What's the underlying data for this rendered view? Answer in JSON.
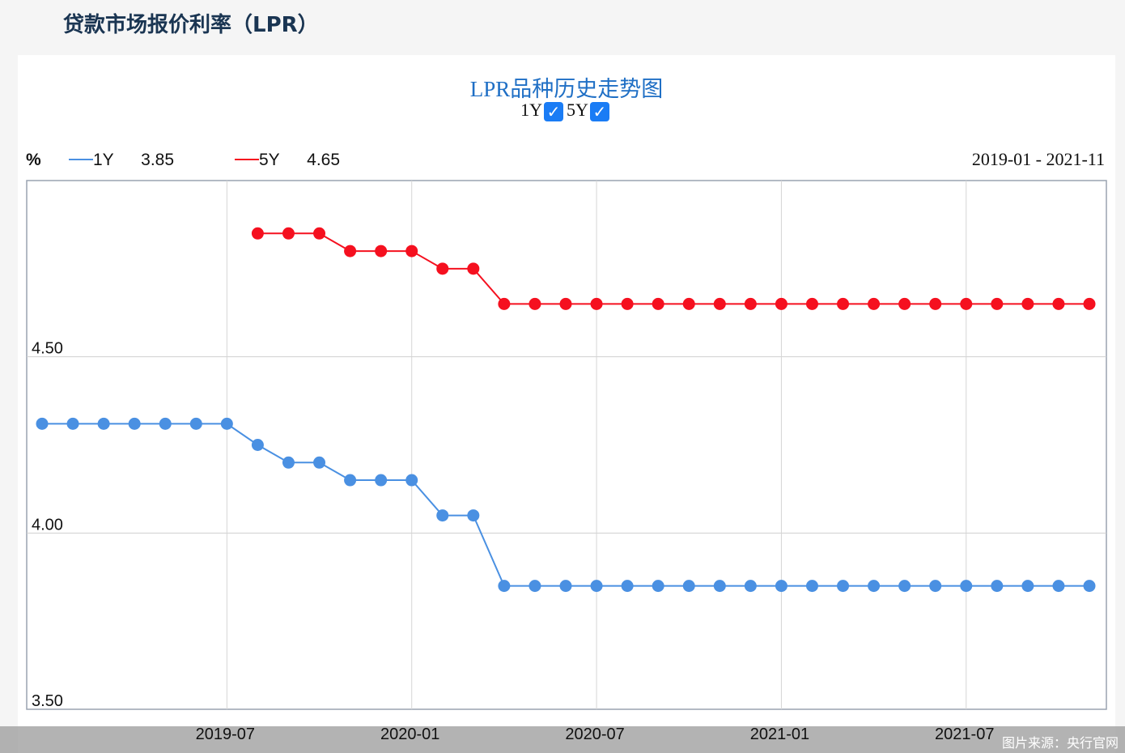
{
  "header": {
    "title": "贷款市场报价利率（LPR）"
  },
  "controls": {
    "toggles": [
      {
        "label": "1Y",
        "checked": true
      },
      {
        "label": "5Y",
        "checked": true
      }
    ],
    "check_glyph": "✓"
  },
  "legend": {
    "unit": "%",
    "items": [
      {
        "label": "1Y",
        "latest": "3.85",
        "color": "#4a90e2"
      },
      {
        "label": "5Y",
        "latest": "4.65",
        "color": "#f5101f"
      }
    ],
    "date_range": "2019-01 - 2021-11"
  },
  "source": "图片来源：央行官网",
  "chart_data": {
    "type": "line",
    "title": "LPR品种历史走势图",
    "ylabel": "%",
    "ylim": [
      3.5,
      5.0
    ],
    "yticks": [
      "3.50",
      "4.00",
      "4.50"
    ],
    "xticks": [
      "2019-07",
      "2020-01",
      "2020-07",
      "2021-01",
      "2021-07"
    ],
    "grid": true,
    "x": [
      "2019-01",
      "2019-02",
      "2019-03",
      "2019-04",
      "2019-05",
      "2019-06",
      "2019-07",
      "2019-08",
      "2019-09",
      "2019-10",
      "2019-11",
      "2019-12",
      "2020-01",
      "2020-02",
      "2020-03",
      "2020-04",
      "2020-05",
      "2020-06",
      "2020-07",
      "2020-08",
      "2020-09",
      "2020-10",
      "2020-11",
      "2020-12",
      "2021-01",
      "2021-02",
      "2021-03",
      "2021-04",
      "2021-05",
      "2021-06",
      "2021-07",
      "2021-08",
      "2021-09",
      "2021-10",
      "2021-11"
    ],
    "series": [
      {
        "name": "1Y",
        "color": "#4a90e2",
        "values": [
          4.31,
          4.31,
          4.31,
          4.31,
          4.31,
          4.31,
          4.31,
          4.25,
          4.2,
          4.2,
          4.15,
          4.15,
          4.15,
          4.05,
          4.05,
          3.85,
          3.85,
          3.85,
          3.85,
          3.85,
          3.85,
          3.85,
          3.85,
          3.85,
          3.85,
          3.85,
          3.85,
          3.85,
          3.85,
          3.85,
          3.85,
          3.85,
          3.85,
          3.85,
          3.85
        ]
      },
      {
        "name": "5Y",
        "color": "#f5101f",
        "values": [
          null,
          null,
          null,
          null,
          null,
          null,
          null,
          4.85,
          4.85,
          4.85,
          4.8,
          4.8,
          4.8,
          4.75,
          4.75,
          4.65,
          4.65,
          4.65,
          4.65,
          4.65,
          4.65,
          4.65,
          4.65,
          4.65,
          4.65,
          4.65,
          4.65,
          4.65,
          4.65,
          4.65,
          4.65,
          4.65,
          4.65,
          4.65,
          4.65
        ]
      }
    ]
  }
}
